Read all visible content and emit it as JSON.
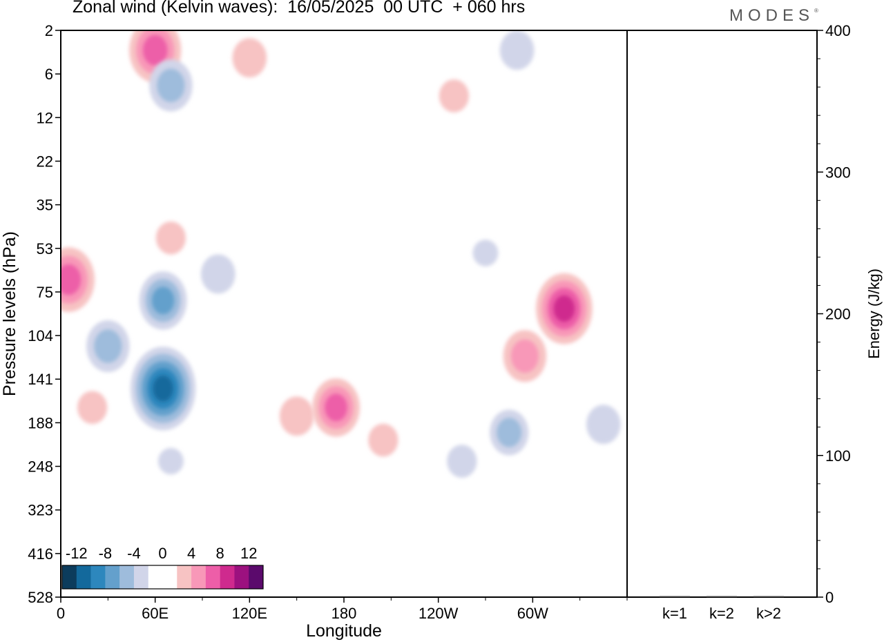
{
  "title": "Zonal wind (Kelvin waves):  16/05/2025  00 UTC  + 060 hrs",
  "logo": "MODES",
  "logo_mark": "®",
  "chart_data": [
    {
      "type": "heatmap",
      "panel": "left",
      "xlabel": "Longitude",
      "ylabel": "Pressure levels (hPa)",
      "x_ticks": [
        "0",
        "60E",
        "120E",
        "180",
        "120W",
        "60W"
      ],
      "y_ticks": [
        "2",
        "6",
        "12",
        "22",
        "35",
        "53",
        "75",
        "104",
        "141",
        "188",
        "248",
        "323",
        "416",
        "528"
      ],
      "colorbar": {
        "labels": [
          "-12",
          "-8",
          "-4",
          "0",
          "4",
          "8",
          "12"
        ],
        "colors": [
          "#0c3c5c",
          "#13699c",
          "#2d87bd",
          "#64a0cc",
          "#9ebcdc",
          "#d1d5e9",
          "#ffffff",
          "#ffffff",
          "#f7c3c3",
          "#f898b8",
          "#ed5ea8",
          "#cf2a8e",
          "#9c117f",
          "#5b0a6c"
        ]
      },
      "features": [
        {
          "lon": 20,
          "p": 170,
          "value": 3
        },
        {
          "lon": 65,
          "p": 150,
          "value": -11
        },
        {
          "lon": 70,
          "p": 240,
          "value": -2
        },
        {
          "lon": 30,
          "p": 112,
          "value": -6
        },
        {
          "lon": 65,
          "p": 80,
          "value": -7
        },
        {
          "lon": 100,
          "p": 65,
          "value": -4
        },
        {
          "lon": 5,
          "p": 68,
          "value": 8
        },
        {
          "lon": 70,
          "p": 48,
          "value": 3
        },
        {
          "lon": 150,
          "p": 180,
          "value": 4
        },
        {
          "lon": 175,
          "p": 170,
          "value": 7
        },
        {
          "lon": 205,
          "p": 210,
          "value": 3
        },
        {
          "lon": 285,
          "p": 200,
          "value": -5
        },
        {
          "lon": 255,
          "p": 240,
          "value": -3
        },
        {
          "lon": 295,
          "p": 120,
          "value": 6
        },
        {
          "lon": 345,
          "p": 190,
          "value": -4
        },
        {
          "lon": 270,
          "p": 55,
          "value": -2
        },
        {
          "lon": 320,
          "p": 85,
          "value": 9
        },
        {
          "lon": 60,
          "p": 3.3,
          "value": 8
        },
        {
          "lon": 70,
          "p": 7.2,
          "value": -6
        },
        {
          "lon": 120,
          "p": 4,
          "value": 4
        },
        {
          "lon": 290,
          "p": 3.3,
          "value": -4
        },
        {
          "lon": 250,
          "p": 8.5,
          "value": 3
        }
      ]
    },
    {
      "type": "bar",
      "panel": "right",
      "ylabel": "Energy (J/kg)",
      "categories": [
        "k=1",
        "k=2",
        "k>2"
      ],
      "values": [
        0.5,
        0.5,
        0.5
      ],
      "ylim": [
        0,
        400
      ],
      "y_ticks": [
        "0",
        "100",
        "200",
        "300",
        "400"
      ]
    }
  ]
}
